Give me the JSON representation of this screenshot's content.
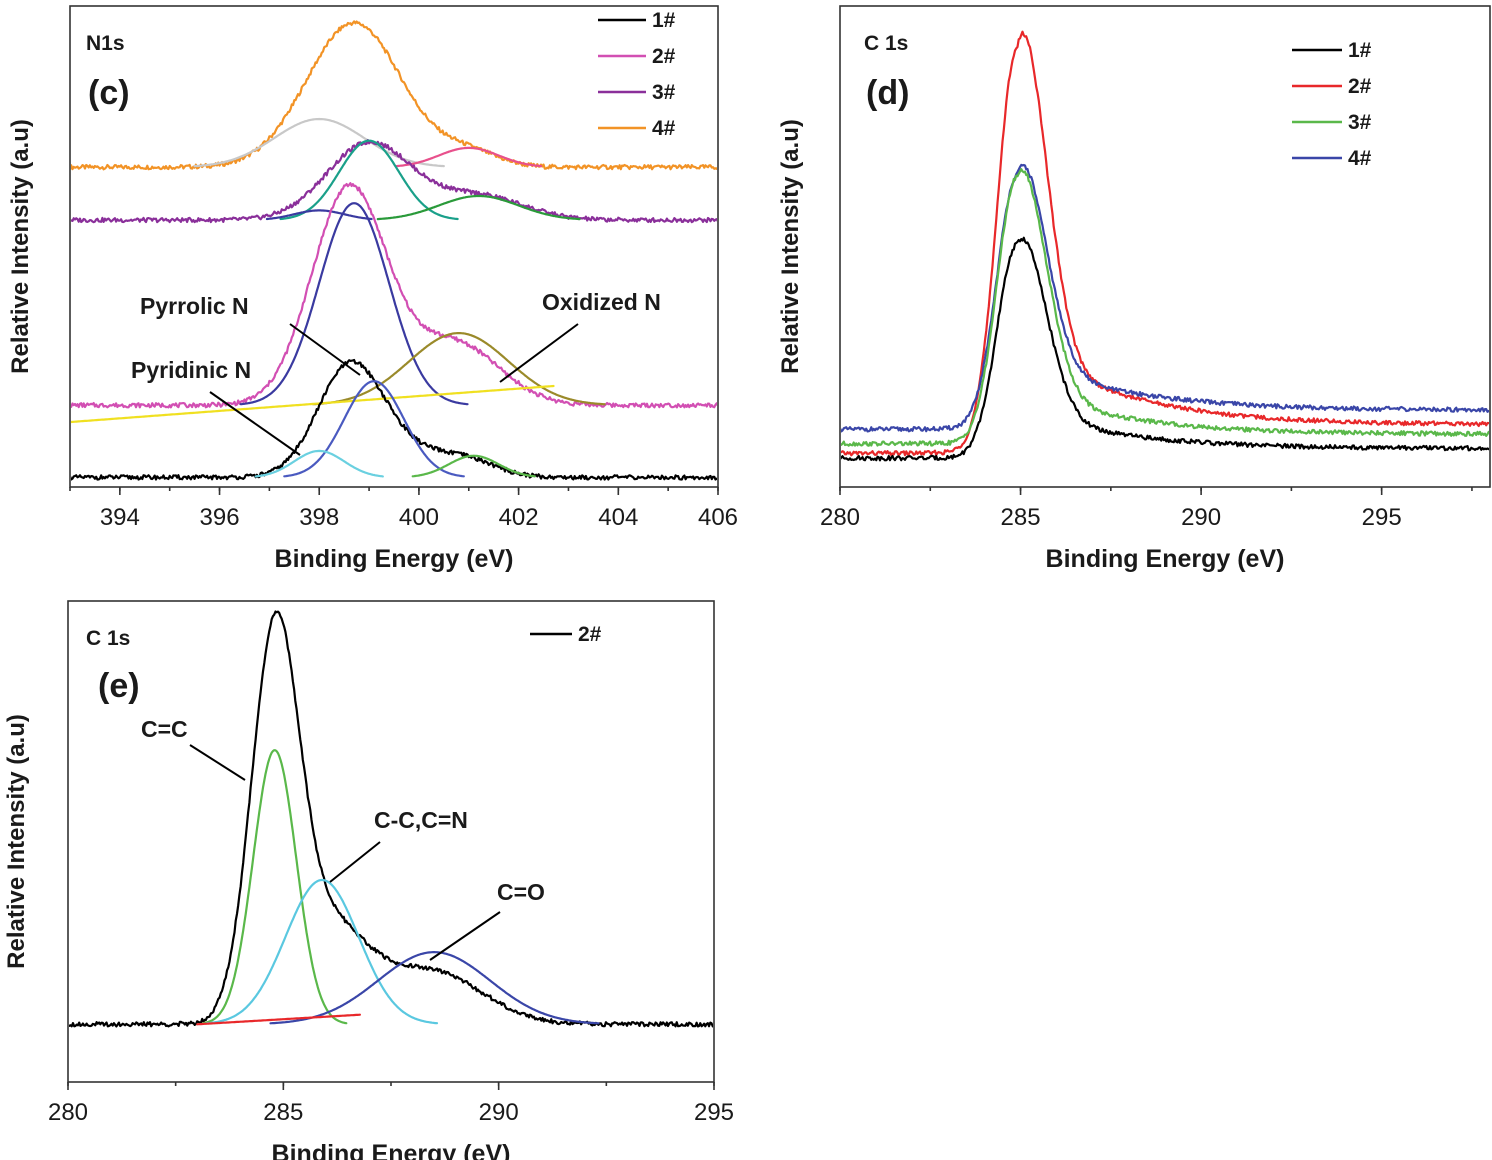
{
  "chart_data": [
    {
      "panel": "(c)",
      "spectrum_label": "N1s",
      "type": "line",
      "xlabel": "Binding Energy (eV)",
      "ylabel": "Relative Intensity (a.u)",
      "xlim": [
        393,
        406
      ],
      "ylim": [
        0,
        1
      ],
      "x_ticks": [
        "394",
        "396",
        "398",
        "400",
        "402",
        "404",
        "406"
      ],
      "x_tick_values": [
        394,
        396,
        398,
        400,
        402,
        404,
        406
      ],
      "grid": false,
      "legend_position": "top-right",
      "legend": [
        {
          "name": "1#",
          "color": "#000000"
        },
        {
          "name": "2#",
          "color": "#d24fb3"
        },
        {
          "name": "3#",
          "color": "#8a2f9a"
        },
        {
          "name": "4#",
          "color": "#f29326"
        }
      ],
      "annotations": [
        {
          "text": "Pyrrolic N",
          "x": 398.6,
          "y": 0.24
        },
        {
          "text": "Pyridinic N",
          "x": 397.8,
          "y": 0.05
        },
        {
          "text": "Oxidized N",
          "x": 400.8,
          "y": 0.25
        }
      ],
      "series": [
        {
          "name": "4#",
          "color": "#f29326",
          "baseline": 0.665,
          "peaks": [
            {
              "c": 398.7,
              "h": 0.3,
              "w": 0.95
            },
            {
              "c": 401.0,
              "h": 0.03,
              "w": 0.6
            }
          ]
        },
        {
          "name": "fit 4# a",
          "color": "#c8c8c8",
          "baseline": 0.665,
          "peaks": [
            {
              "c": 398.0,
              "h": 0.1,
              "w": 0.9
            }
          ]
        },
        {
          "name": "fit 4# b",
          "color": "#e8508c",
          "baseline": 0.665,
          "peaks": [
            {
              "c": 401.0,
              "h": 0.04,
              "w": 0.6
            }
          ]
        },
        {
          "name": "3#",
          "color": "#8a2f9a",
          "baseline": 0.555,
          "peaks": [
            {
              "c": 399.0,
              "h": 0.16,
              "w": 0.85
            },
            {
              "c": 401.2,
              "h": 0.05,
              "w": 0.9
            }
          ]
        },
        {
          "name": "fit 3# a",
          "color": "#1aa08a",
          "baseline": 0.555,
          "peaks": [
            {
              "c": 399.0,
              "h": 0.165,
              "w": 0.6
            }
          ]
        },
        {
          "name": "fit 3# b",
          "color": "#2a9a3a",
          "baseline": 0.555,
          "peaks": [
            {
              "c": 401.2,
              "h": 0.05,
              "w": 0.8
            }
          ]
        },
        {
          "name": "fit 3# c",
          "color": "#3a3aa0",
          "baseline": 0.555,
          "peaks": [
            {
              "c": 398.0,
              "h": 0.02,
              "w": 0.5
            }
          ]
        },
        {
          "name": "2#",
          "color": "#d24fb3",
          "baseline": 0.17,
          "peaks": [
            {
              "c": 398.6,
              "h": 0.45,
              "w": 0.75
            },
            {
              "c": 400.7,
              "h": 0.13,
              "w": 0.9
            }
          ]
        },
        {
          "name": "fit 2# a",
          "color": "#3a3aa0",
          "baseline": 0.17,
          "peaks": [
            {
              "c": 398.7,
              "h": 0.42,
              "w": 0.7
            }
          ]
        },
        {
          "name": "fit 2# b",
          "color": "#9a8a2a",
          "baseline": 0.17,
          "peaks": [
            {
              "c": 400.8,
              "h": 0.15,
              "w": 1.0
            }
          ]
        },
        {
          "name": "fit 2# baseline",
          "color": "#f0e020",
          "line": [
            [
              393,
              0.135
            ],
            [
              402.7,
              0.21
            ]
          ]
        },
        {
          "name": "1#",
          "color": "#000000",
          "baseline": 0.02,
          "peaks": [
            {
              "c": 398.6,
              "h": 0.22,
              "w": 0.65
            },
            {
              "c": 399.7,
              "h": 0.05,
              "w": 0.8
            },
            {
              "c": 401.0,
              "h": 0.03,
              "w": 0.6
            }
          ]
        },
        {
          "name": "fit 1# a",
          "color": "#4a5ac0",
          "baseline": 0.02,
          "peaks": [
            {
              "c": 399.1,
              "h": 0.2,
              "w": 0.6
            }
          ]
        },
        {
          "name": "fit 1# b",
          "color": "#6ad0e0",
          "baseline": 0.02,
          "peaks": [
            {
              "c": 398.0,
              "h": 0.055,
              "w": 0.5
            }
          ]
        },
        {
          "name": "fit 1# c",
          "color": "#5ab84a",
          "baseline": 0.02,
          "peaks": [
            {
              "c": 401.1,
              "h": 0.045,
              "w": 0.5
            }
          ]
        }
      ]
    },
    {
      "panel": "(d)",
      "spectrum_label": "C 1s",
      "type": "line",
      "xlabel": "Binding Energy (eV)",
      "ylabel": "Relative Intensity (a.u)",
      "xlim": [
        280,
        298
      ],
      "ylim": [
        0,
        1
      ],
      "x_ticks": [
        "280",
        "285",
        "290",
        "295"
      ],
      "x_tick_values": [
        280,
        285,
        290,
        295
      ],
      "grid": false,
      "legend_position": "top-right",
      "legend": [
        {
          "name": "1#",
          "color": "#000000"
        },
        {
          "name": "2#",
          "color": "#e8282a"
        },
        {
          "name": "3#",
          "color": "#5ab84a"
        },
        {
          "name": "4#",
          "color": "#3a46a8"
        }
      ],
      "series": [
        {
          "name": "2#",
          "color": "#e8282a",
          "base_left": 0.07,
          "base_right": 0.13,
          "peak_x": 284.9,
          "peak_h": 0.83,
          "tail": 0.22
        },
        {
          "name": "4#",
          "color": "#3a46a8",
          "base_left": 0.12,
          "base_right": 0.16,
          "peak_x": 284.9,
          "peak_h": 0.52,
          "tail": 0.14
        },
        {
          "name": "3#",
          "color": "#5ab84a",
          "base_left": 0.09,
          "base_right": 0.11,
          "peak_x": 284.9,
          "peak_h": 0.55,
          "tail": 0.12
        },
        {
          "name": "1#",
          "color": "#000000",
          "base_left": 0.06,
          "base_right": 0.08,
          "peak_x": 284.9,
          "peak_h": 0.44,
          "tail": 0.1
        }
      ]
    },
    {
      "panel": "(e)",
      "spectrum_label": "C 1s",
      "type": "line",
      "xlabel": "Binding Energy (eV)",
      "ylabel": "Relative Intensity (a.u)",
      "xlim": [
        280,
        295
      ],
      "ylim": [
        0,
        1
      ],
      "x_ticks": [
        "280",
        "285",
        "290",
        "295"
      ],
      "x_tick_values": [
        280,
        285,
        290,
        295
      ],
      "grid": false,
      "legend_position": "top-right",
      "legend": [
        {
          "name": "2#",
          "color": "#000000"
        }
      ],
      "annotations": [
        {
          "text": "C=C",
          "x": 284.2,
          "y": 0.62
        },
        {
          "text": "C-C,C=N",
          "x": 286.6,
          "y": 0.45
        },
        {
          "text": "C=O",
          "x": 288.8,
          "y": 0.31
        }
      ],
      "series": [
        {
          "name": "2#",
          "color": "#000000",
          "baseline": 0.12,
          "peaks": [
            {
              "c": 284.8,
              "h": 0.77,
              "w": 0.55
            },
            {
              "c": 286.0,
              "h": 0.2,
              "w": 0.9
            },
            {
              "c": 288.4,
              "h": 0.11,
              "w": 1.2
            }
          ]
        },
        {
          "name": "fit C=C",
          "color": "#5ab84a",
          "baseline": 0.12,
          "peaks": [
            {
              "c": 284.8,
              "h": 0.57,
              "w": 0.5
            }
          ]
        },
        {
          "name": "fit C-C,C=N",
          "color": "#5ac8e0",
          "baseline": 0.12,
          "peaks": [
            {
              "c": 285.9,
              "h": 0.3,
              "w": 0.85
            }
          ]
        },
        {
          "name": "fit C=O",
          "color": "#3a46a8",
          "baseline": 0.12,
          "peaks": [
            {
              "c": 288.5,
              "h": 0.15,
              "w": 1.3
            }
          ]
        },
        {
          "name": "background",
          "color": "#e8282a",
          "line": [
            [
              283.0,
              0.12
            ],
            [
              286.8,
              0.14
            ]
          ]
        }
      ]
    }
  ]
}
